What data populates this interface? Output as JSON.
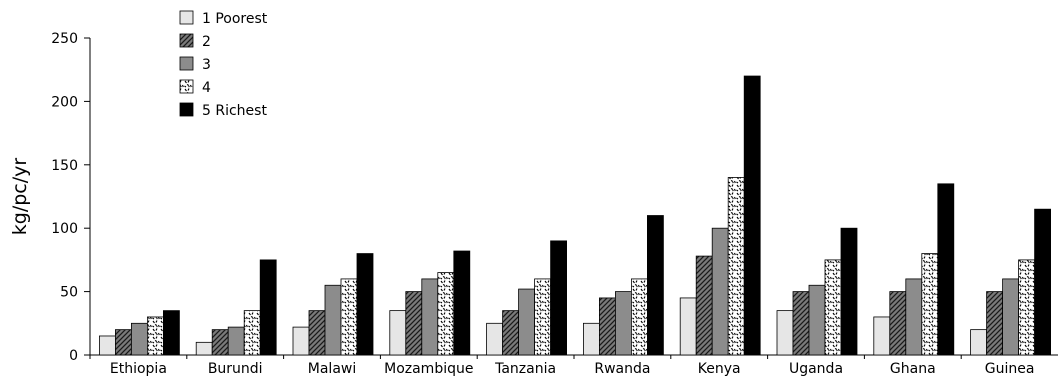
{
  "chart_data": {
    "type": "bar",
    "title": "",
    "xlabel": "",
    "ylabel": "kg/pc/yr",
    "ylim": [
      0,
      250
    ],
    "yticks": [
      0,
      50,
      100,
      150,
      200,
      250
    ],
    "grid": false,
    "legend_position": "top-left",
    "categories": [
      "Ethiopia",
      "Burundi",
      "Malawi",
      "Mozambique",
      "Tanzania",
      "Rwanda",
      "Kenya",
      "Uganda",
      "Ghana",
      "Guinea"
    ],
    "series": [
      {
        "name": "1 Poorest",
        "pattern": "light-gray",
        "color": "#e6e6e6",
        "values": [
          15,
          10,
          22,
          35,
          25,
          25,
          45,
          35,
          30,
          20
        ]
      },
      {
        "name": "2",
        "pattern": "hatched",
        "color": "#555555",
        "values": [
          20,
          20,
          35,
          50,
          35,
          45,
          78,
          50,
          50,
          50
        ]
      },
      {
        "name": "3",
        "pattern": "gray",
        "color": "#8c8c8c",
        "values": [
          25,
          22,
          55,
          60,
          52,
          50,
          100,
          55,
          60,
          60
        ]
      },
      {
        "name": "4",
        "pattern": "speckled",
        "color": "#ffffff",
        "values": [
          30,
          35,
          60,
          65,
          60,
          60,
          140,
          75,
          80,
          75
        ]
      },
      {
        "name": "5 Richest",
        "pattern": "black",
        "color": "#000000",
        "values": [
          35,
          75,
          80,
          82,
          90,
          110,
          220,
          100,
          135,
          115
        ]
      }
    ]
  }
}
